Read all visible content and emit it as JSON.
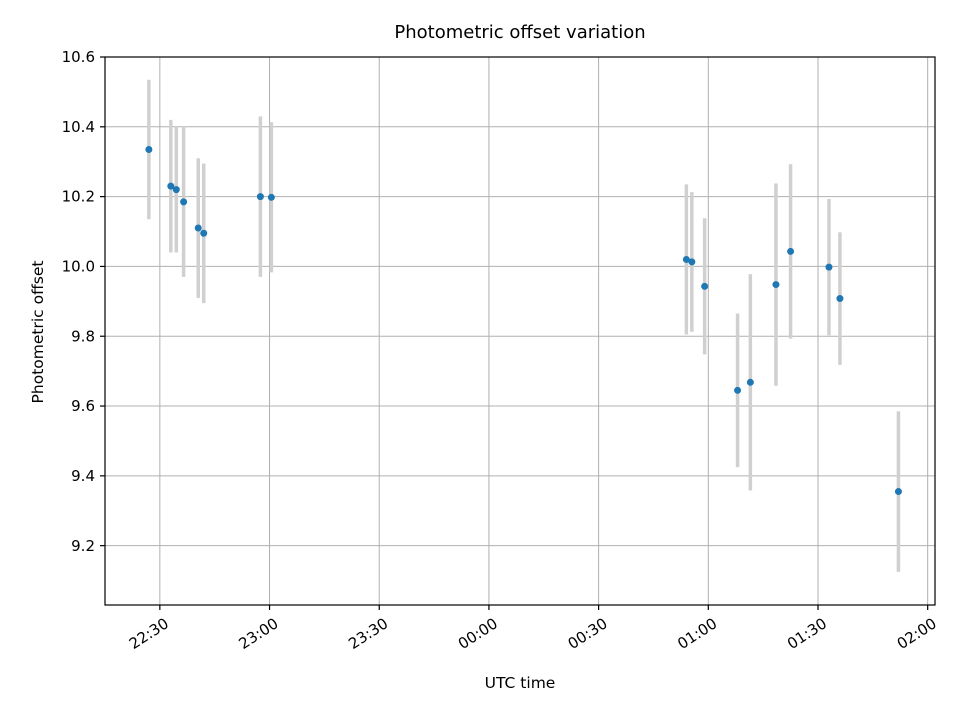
{
  "figure": {
    "title": "Photometric offset variation",
    "xlabel": "UTC time",
    "ylabel": "Photometric offset"
  },
  "chart_data": {
    "type": "scatter",
    "title": "Photometric offset variation",
    "xlabel": "UTC time",
    "ylabel": "Photometric offset",
    "grid": true,
    "legend": false,
    "x_axis_unit": "UTC time (HH:MM)",
    "x_ticks": [
      {
        "minutes": 30,
        "label": "22:30"
      },
      {
        "minutes": 60,
        "label": "23:00"
      },
      {
        "minutes": 90,
        "label": "23:30"
      },
      {
        "minutes": 120,
        "label": "00:00"
      },
      {
        "minutes": 150,
        "label": "00:30"
      },
      {
        "minutes": 180,
        "label": "01:00"
      },
      {
        "minutes": 210,
        "label": "01:30"
      },
      {
        "minutes": 240,
        "label": "02:00"
      }
    ],
    "y_ticks": [
      9.2,
      9.4,
      9.6,
      9.8,
      10.0,
      10.2,
      10.4,
      10.6
    ],
    "xlim_minutes": [
      15,
      242
    ],
    "ylim": [
      9.03,
      10.6
    ],
    "colors": {
      "point": "#1f77b4",
      "error_bar": "#d0d0d0",
      "grid": "#b0b0b0",
      "axis": "#000000"
    },
    "points": [
      {
        "utc": "22:27",
        "x_minutes": 27,
        "y": 10.335,
        "yerr": 0.2
      },
      {
        "utc": "22:33",
        "x_minutes": 33,
        "y": 10.23,
        "yerr": 0.19
      },
      {
        "utc": "22:34",
        "x_minutes": 34.5,
        "y": 10.22,
        "yerr": 0.18
      },
      {
        "utc": "22:36",
        "x_minutes": 36.5,
        "y": 10.185,
        "yerr": 0.215
      },
      {
        "utc": "22:40",
        "x_minutes": 40.5,
        "y": 10.11,
        "yerr": 0.2
      },
      {
        "utc": "22:42",
        "x_minutes": 42,
        "y": 10.095,
        "yerr": 0.2
      },
      {
        "utc": "22:57",
        "x_minutes": 57.5,
        "y": 10.2,
        "yerr": 0.23
      },
      {
        "utc": "23:00",
        "x_minutes": 60.5,
        "y": 10.198,
        "yerr": 0.215
      },
      {
        "utc": "00:54",
        "x_minutes": 174,
        "y": 10.02,
        "yerr": 0.215
      },
      {
        "utc": "00:55",
        "x_minutes": 175.5,
        "y": 10.013,
        "yerr": 0.2
      },
      {
        "utc": "00:59",
        "x_minutes": 179,
        "y": 9.943,
        "yerr": 0.195
      },
      {
        "utc": "01:08",
        "x_minutes": 188,
        "y": 9.645,
        "yerr": 0.22
      },
      {
        "utc": "01:11",
        "x_minutes": 191.5,
        "y": 9.668,
        "yerr": 0.31
      },
      {
        "utc": "01:18",
        "x_minutes": 198.5,
        "y": 9.948,
        "yerr": 0.29
      },
      {
        "utc": "01:22",
        "x_minutes": 202.5,
        "y": 10.043,
        "yerr": 0.25
      },
      {
        "utc": "01:33",
        "x_minutes": 213,
        "y": 9.998,
        "yerr": 0.195
      },
      {
        "utc": "01:36",
        "x_minutes": 216,
        "y": 9.908,
        "yerr": 0.19
      },
      {
        "utc": "01:52",
        "x_minutes": 232,
        "y": 9.355,
        "yerr": 0.23
      }
    ]
  }
}
